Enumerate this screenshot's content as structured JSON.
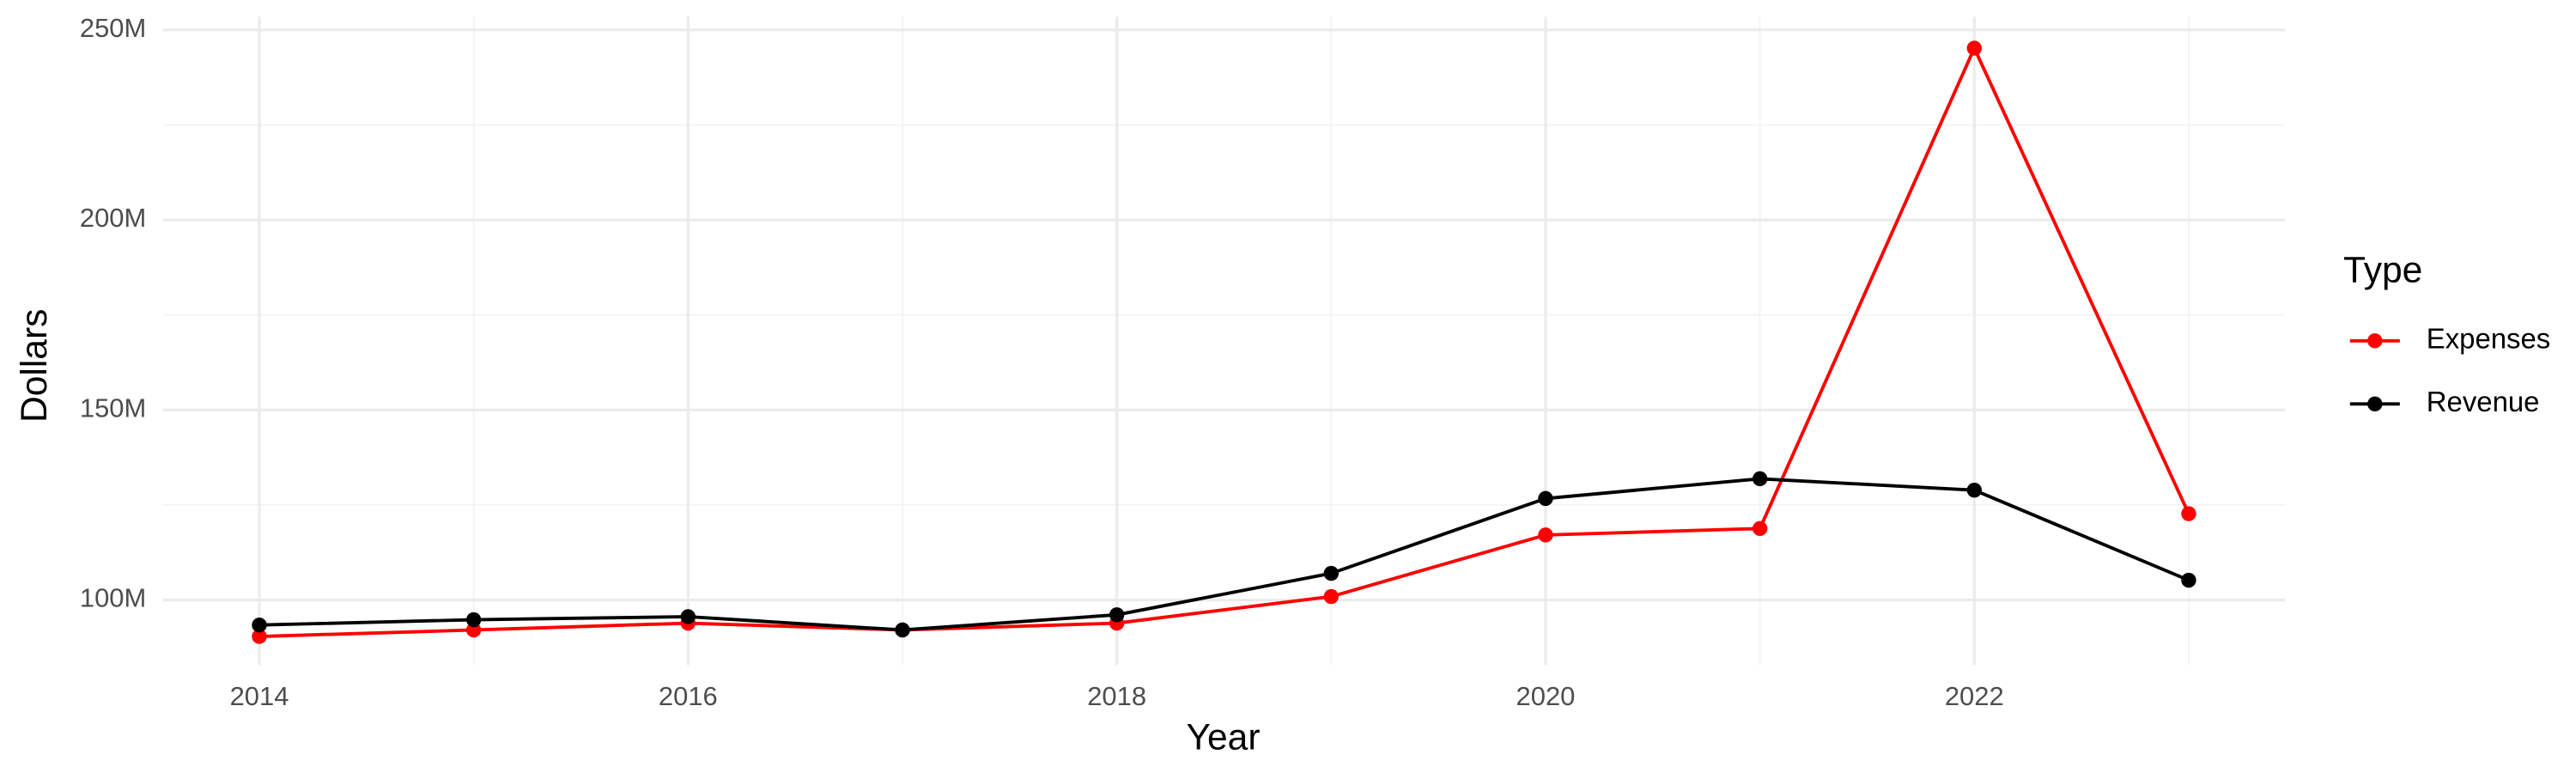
{
  "chart_data": {
    "type": "line",
    "x_label": "Year",
    "y_label": "Dollars",
    "legend_title": "Type",
    "legend": "right",
    "x": [
      2014,
      2015,
      2016,
      2017,
      2018,
      2019,
      2020,
      2021,
      2022,
      2023
    ],
    "series": [
      {
        "name": "Expenses",
        "color": "#ff0000",
        "values": [
          90400000,
          92100000,
          93900000,
          92100000,
          93900000,
          100900000,
          117100000,
          118800000,
          245200000,
          122700000
        ]
      },
      {
        "name": "Revenue",
        "color": "#000000",
        "values": [
          93400000,
          94800000,
          95600000,
          92100000,
          96100000,
          107000000,
          126700000,
          131900000,
          128900000,
          105200000
        ]
      }
    ],
    "xlim": [
      2013.55,
      2023.45
    ],
    "xticks": [
      2014,
      2016,
      2018,
      2020,
      2022
    ],
    "ylim": [
      82900000,
      253500000
    ],
    "yticks": [
      {
        "value": 100000000,
        "label": "100M"
      },
      {
        "value": 150000000,
        "label": "150M"
      },
      {
        "value": 200000000,
        "label": "200M"
      },
      {
        "value": 250000000,
        "label": "250M"
      }
    ],
    "grid": true
  }
}
